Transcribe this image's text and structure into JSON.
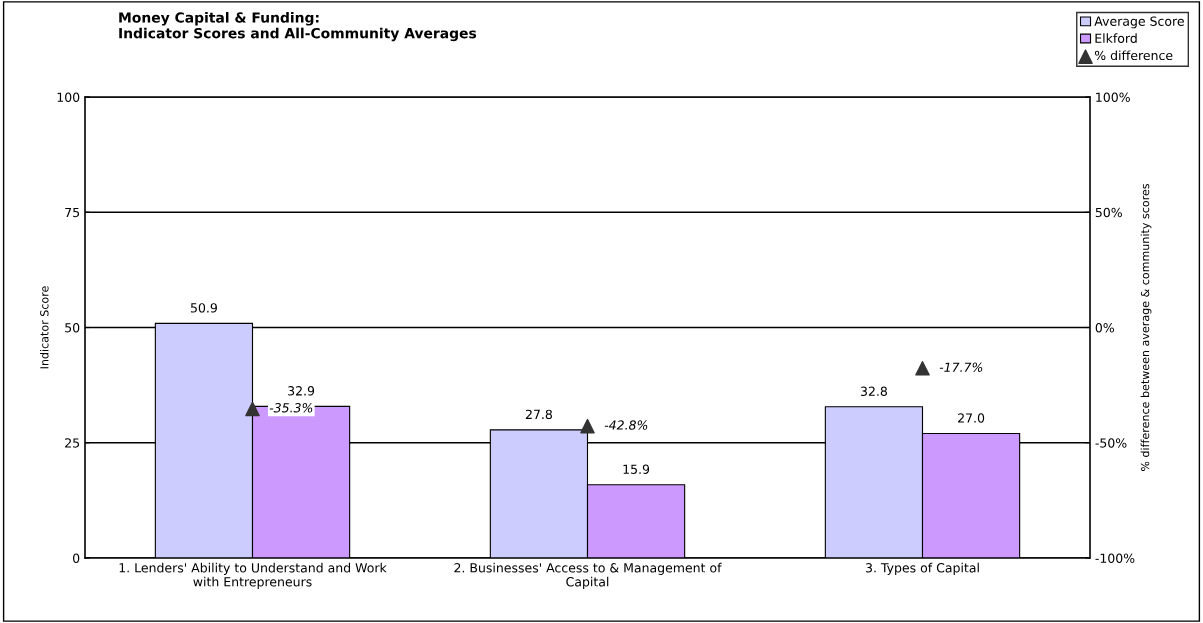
{
  "chart_data": {
    "type": "bar",
    "title": "Money Capital & Funding:\nIndicator Scores and All-Community Averages",
    "ylabel": "Indicator Score",
    "y2label": "% difference between average & community scores",
    "categories": [
      "1. Lenders' Ability to Understand and Work with Entrepreneurs",
      "2. Businesses' Access to & Management of Capital",
      "3. Types of Capital"
    ],
    "series": [
      {
        "name": "Average Score",
        "color": "#ccccff",
        "values": [
          50.9,
          27.8,
          32.8
        ],
        "value_labels": [
          "50.9",
          "27.8",
          "32.8"
        ]
      },
      {
        "name": "Elkford",
        "color": "#cc99ff",
        "values": [
          32.9,
          15.9,
          27.0
        ],
        "value_labels": [
          "32.9",
          "15.9",
          "27.0"
        ]
      },
      {
        "name": "% difference",
        "type": "scatter",
        "axis": "y2",
        "marker": "triangle",
        "color": "#333333",
        "values": [
          -35.3,
          -42.8,
          -17.7
        ],
        "value_labels": [
          "-35.3%",
          "-42.8%",
          "-17.7%"
        ]
      }
    ],
    "ylim": [
      0,
      100
    ],
    "yticks": [
      0,
      25,
      50,
      75,
      100
    ],
    "y2lim": [
      -100,
      100
    ],
    "y2ticks": [
      {
        "value": -100,
        "label": "-100%"
      },
      {
        "value": -50,
        "label": "-50%"
      },
      {
        "value": 0,
        "label": "0%"
      },
      {
        "value": 50,
        "label": "50%"
      },
      {
        "value": 100,
        "label": "100%"
      }
    ],
    "grid": "y",
    "legend": "top right"
  }
}
